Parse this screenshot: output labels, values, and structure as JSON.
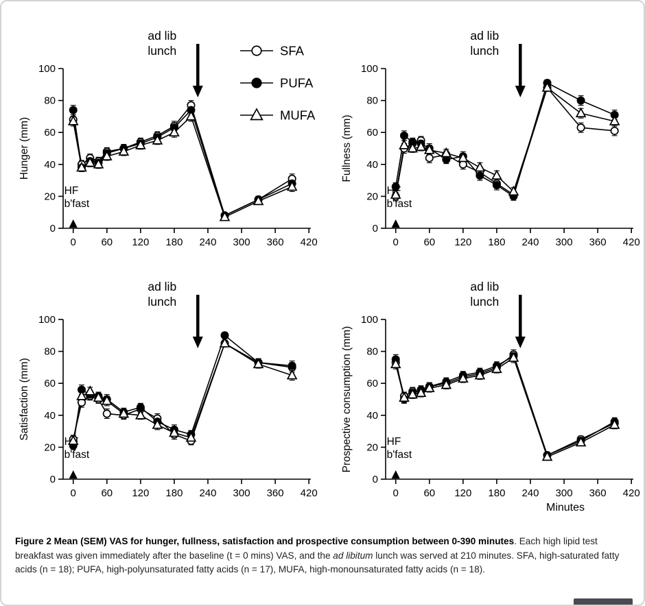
{
  "figure": {
    "caption": {
      "bold": "Figure 2 Mean (SEM) VAS for hunger, fullness, satisfaction and prospective consumption between 0-390 minutes",
      "text1": ". Each high lipid test breakfast was given immediately after the baseline (t = 0 mins) VAS, and the ",
      "italic": "ad libitum",
      "text2": " lunch was served at 210 minutes. SFA, high-saturated fatty acids (n = 18); PUFA, high-polyunsaturated fatty acids (n = 17), MUFA, high-monounsaturated fatty acids (n = 18)."
    },
    "x_axis_label": "Minutes",
    "annotations": {
      "lunch_line1": "ad lib",
      "lunch_line2": "lunch",
      "breakfast_line1": "HF",
      "breakfast_line2": "b'fast",
      "lunch_time_min": 210,
      "breakfast_time_min": 0
    },
    "legend": [
      {
        "label": "SFA",
        "marker": "open-circle"
      },
      {
        "label": "PUFA",
        "marker": "filled-circle"
      },
      {
        "label": "MUFA",
        "marker": "open-triangle"
      }
    ],
    "colors": {
      "line": "#000000",
      "background": "#ffffff",
      "border": "#d4d4d4"
    }
  },
  "chart_data": [
    {
      "type": "line",
      "name": "hunger",
      "ylabel": "Hunger (mm)",
      "x": [
        0,
        15,
        30,
        45,
        60,
        90,
        120,
        150,
        180,
        210,
        270,
        330,
        390
      ],
      "x_ticks": [
        0,
        60,
        120,
        180,
        240,
        300,
        360,
        420
      ],
      "y_ticks": [
        0,
        20,
        40,
        60,
        80,
        100
      ],
      "ylim": [
        0,
        100
      ],
      "xlim": [
        0,
        420
      ],
      "sem": [
        3,
        2.5,
        2.5,
        2.5,
        2.5,
        2.5,
        2.5,
        2.5,
        3,
        3,
        1.5,
        2,
        3
      ],
      "series": [
        {
          "name": "SFA",
          "marker": "open-circle",
          "values": [
            68,
            40,
            44,
            42,
            48,
            50,
            54,
            58,
            64,
            77,
            8,
            18,
            31
          ]
        },
        {
          "name": "PUFA",
          "marker": "filled-circle",
          "values": [
            74,
            38,
            42,
            41,
            47,
            50,
            53,
            57,
            63,
            74,
            8,
            18,
            28
          ]
        },
        {
          "name": "MUFA",
          "marker": "open-triangle",
          "values": [
            67,
            38,
            41,
            40,
            45,
            48,
            52,
            55,
            60,
            70,
            7,
            17,
            26
          ]
        }
      ]
    },
    {
      "type": "line",
      "name": "fullness",
      "ylabel": "Fullness (mm)",
      "x": [
        0,
        15,
        30,
        45,
        60,
        90,
        120,
        150,
        180,
        210,
        270,
        330,
        390
      ],
      "x_ticks": [
        0,
        60,
        120,
        180,
        240,
        300,
        360,
        420
      ],
      "y_ticks": [
        0,
        20,
        40,
        60,
        80,
        100
      ],
      "ylim": [
        0,
        100
      ],
      "xlim": [
        0,
        420
      ],
      "sem": [
        2.5,
        3,
        2.5,
        2.5,
        3,
        2.5,
        3,
        3,
        3,
        2.5,
        2,
        3,
        3
      ],
      "series": [
        {
          "name": "SFA",
          "marker": "open-circle",
          "values": [
            20,
            50,
            53,
            55,
            44,
            46,
            40,
            35,
            28,
            21,
            88,
            63,
            61
          ]
        },
        {
          "name": "PUFA",
          "marker": "filled-circle",
          "values": [
            26,
            58,
            54,
            53,
            50,
            43,
            45,
            33,
            27,
            20,
            91,
            80,
            71
          ]
        },
        {
          "name": "MUFA",
          "marker": "open-triangle",
          "values": [
            21,
            52,
            50,
            51,
            49,
            47,
            44,
            38,
            33,
            23,
            88,
            72,
            67
          ]
        }
      ]
    },
    {
      "type": "line",
      "name": "satisfaction",
      "ylabel": "Satisfaction (mm)",
      "x": [
        0,
        15,
        30,
        45,
        60,
        90,
        120,
        150,
        180,
        210,
        270,
        330,
        390
      ],
      "x_ticks": [
        0,
        60,
        120,
        180,
        240,
        300,
        360,
        420
      ],
      "y_ticks": [
        0,
        20,
        40,
        60,
        80,
        100
      ],
      "ylim": [
        0,
        100
      ],
      "xlim": [
        0,
        420
      ],
      "sem": [
        2.5,
        3,
        2.5,
        2.5,
        3,
        2.5,
        2.5,
        3,
        3,
        2.5,
        2,
        2.5,
        3
      ],
      "series": [
        {
          "name": "SFA",
          "marker": "open-circle",
          "values": [
            25,
            48,
            52,
            50,
            41,
            40,
            44,
            38,
            28,
            24,
            85,
            73,
            70
          ]
        },
        {
          "name": "PUFA",
          "marker": "filled-circle",
          "values": [
            21,
            56,
            53,
            52,
            50,
            42,
            45,
            36,
            31,
            28,
            90,
            73,
            71
          ]
        },
        {
          "name": "MUFA",
          "marker": "open-triangle",
          "values": [
            24,
            52,
            55,
            51,
            49,
            41,
            40,
            34,
            29,
            26,
            85,
            72,
            65
          ]
        }
      ]
    },
    {
      "type": "line",
      "name": "prospective-consumption",
      "ylabel": "Prospective consumption (mm)",
      "x": [
        0,
        15,
        30,
        45,
        60,
        90,
        120,
        150,
        180,
        210,
        270,
        330,
        390
      ],
      "x_ticks": [
        0,
        60,
        120,
        180,
        240,
        300,
        360,
        420
      ],
      "y_ticks": [
        0,
        20,
        40,
        60,
        80,
        100
      ],
      "ylim": [
        0,
        100
      ],
      "xlim": [
        0,
        420
      ],
      "sem": [
        3,
        2.5,
        2.5,
        2.5,
        2.5,
        2.5,
        2.5,
        2.5,
        2.5,
        3,
        1.5,
        2,
        2.5
      ],
      "series": [
        {
          "name": "SFA",
          "marker": "open-circle",
          "values": [
            73,
            52,
            55,
            55,
            58,
            60,
            64,
            66,
            70,
            78,
            15,
            25,
            35
          ]
        },
        {
          "name": "PUFA",
          "marker": "filled-circle",
          "values": [
            75,
            50,
            54,
            56,
            58,
            61,
            65,
            67,
            71,
            77,
            15,
            24,
            36
          ]
        },
        {
          "name": "MUFA",
          "marker": "open-triangle",
          "values": [
            72,
            51,
            53,
            54,
            57,
            59,
            63,
            65,
            69,
            76,
            14,
            23,
            34
          ]
        }
      ]
    }
  ]
}
